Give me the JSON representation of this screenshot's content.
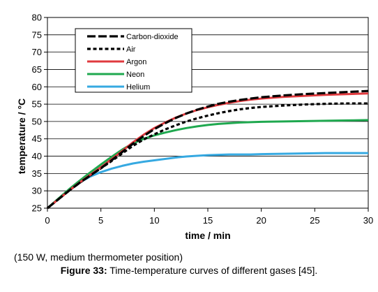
{
  "chart_data": {
    "type": "line",
    "xlabel": "time / min",
    "ylabel": "temperature / °C",
    "xlim": [
      0,
      30
    ],
    "ylim": [
      25,
      80
    ],
    "xticks": [
      "0",
      "5",
      "10",
      "15",
      "20",
      "25",
      "30"
    ],
    "yticks": [
      "25",
      "30",
      "35",
      "40",
      "45",
      "50",
      "55",
      "60",
      "65",
      "70",
      "75",
      "80"
    ],
    "grid": "horizontal",
    "legend_position": "top-left",
    "series": [
      {
        "name": "Carbon-dioxide",
        "color": "#000000",
        "style": "dashed",
        "x": [
          0,
          1,
          2,
          3,
          4,
          5,
          6,
          7,
          8,
          9,
          10,
          11,
          12,
          13,
          14,
          15,
          16,
          17,
          18,
          19,
          20,
          22,
          24,
          26,
          28,
          30
        ],
        "y": [
          25,
          27.5,
          30,
          32.3,
          34.4,
          36.5,
          38.8,
          41.2,
          43.6,
          45.8,
          47.8,
          49.5,
          51,
          52.3,
          53.4,
          54.3,
          55.1,
          55.7,
          56.2,
          56.6,
          57,
          57.5,
          57.9,
          58.2,
          58.5,
          58.8
        ]
      },
      {
        "name": "Air",
        "color": "#000000",
        "style": "dotted",
        "x": [
          0,
          1,
          2,
          3,
          4,
          5,
          6,
          7,
          8,
          9,
          10,
          11,
          12,
          13,
          14,
          15,
          16,
          17,
          18,
          19,
          20,
          22,
          24,
          26,
          28,
          30
        ],
        "y": [
          25,
          27.5,
          30,
          32.3,
          34.4,
          36.5,
          38.6,
          40.8,
          43,
          44.8,
          46.3,
          47.7,
          48.9,
          50,
          50.9,
          51.7,
          52.4,
          53,
          53.5,
          53.9,
          54.2,
          54.6,
          54.9,
          55.1,
          55.2,
          55.2
        ]
      },
      {
        "name": "Argon",
        "color": "#e03a3e",
        "style": "solid",
        "x": [
          0,
          1,
          2,
          3,
          4,
          5,
          6,
          7,
          8,
          9,
          10,
          11,
          12,
          13,
          14,
          15,
          16,
          17,
          18,
          19,
          20,
          22,
          24,
          26,
          28,
          30
        ],
        "y": [
          25,
          27.5,
          30,
          32.4,
          34.6,
          36.8,
          39.1,
          41.5,
          44,
          46.2,
          48.1,
          49.7,
          51.1,
          52.3,
          53.3,
          54.1,
          54.8,
          55.4,
          55.9,
          56.3,
          56.6,
          57.1,
          57.4,
          57.7,
          57.9,
          58.1
        ]
      },
      {
        "name": "Neon",
        "color": "#1fa84f",
        "style": "solid",
        "x": [
          0,
          1,
          2,
          3,
          4,
          5,
          6,
          7,
          8,
          9,
          10,
          11,
          12,
          13,
          14,
          15,
          16,
          17,
          18,
          19,
          20,
          22,
          24,
          26,
          28,
          30
        ],
        "y": [
          25,
          27.7,
          30.4,
          32.9,
          35.3,
          37.6,
          39.8,
          41.9,
          43.7,
          45,
          46,
          46.8,
          47.5,
          48.1,
          48.6,
          49,
          49.3,
          49.5,
          49.7,
          49.8,
          49.9,
          50,
          50.1,
          50.2,
          50.3,
          50.4
        ]
      },
      {
        "name": "Helium",
        "color": "#36a9e1",
        "style": "solid",
        "x": [
          0,
          1,
          2,
          3,
          4,
          5,
          6,
          7,
          8,
          9,
          10,
          11,
          12,
          13,
          14,
          15,
          16,
          17,
          18,
          19,
          20,
          22,
          24,
          26,
          28,
          30
        ],
        "y": [
          25,
          27.6,
          30.3,
          32.4,
          34.1,
          35.4,
          36.4,
          37.2,
          37.9,
          38.4,
          38.8,
          39.2,
          39.6,
          39.9,
          40.1,
          40.3,
          40.4,
          40.5,
          40.5,
          40.5,
          40.6,
          40.7,
          40.8,
          40.9,
          40.9,
          40.9
        ]
      }
    ]
  },
  "note": "(150 W, medium thermometer position)",
  "caption": {
    "label": "Figure 33:",
    "text": " Time-temperature curves of different gases [45]."
  }
}
